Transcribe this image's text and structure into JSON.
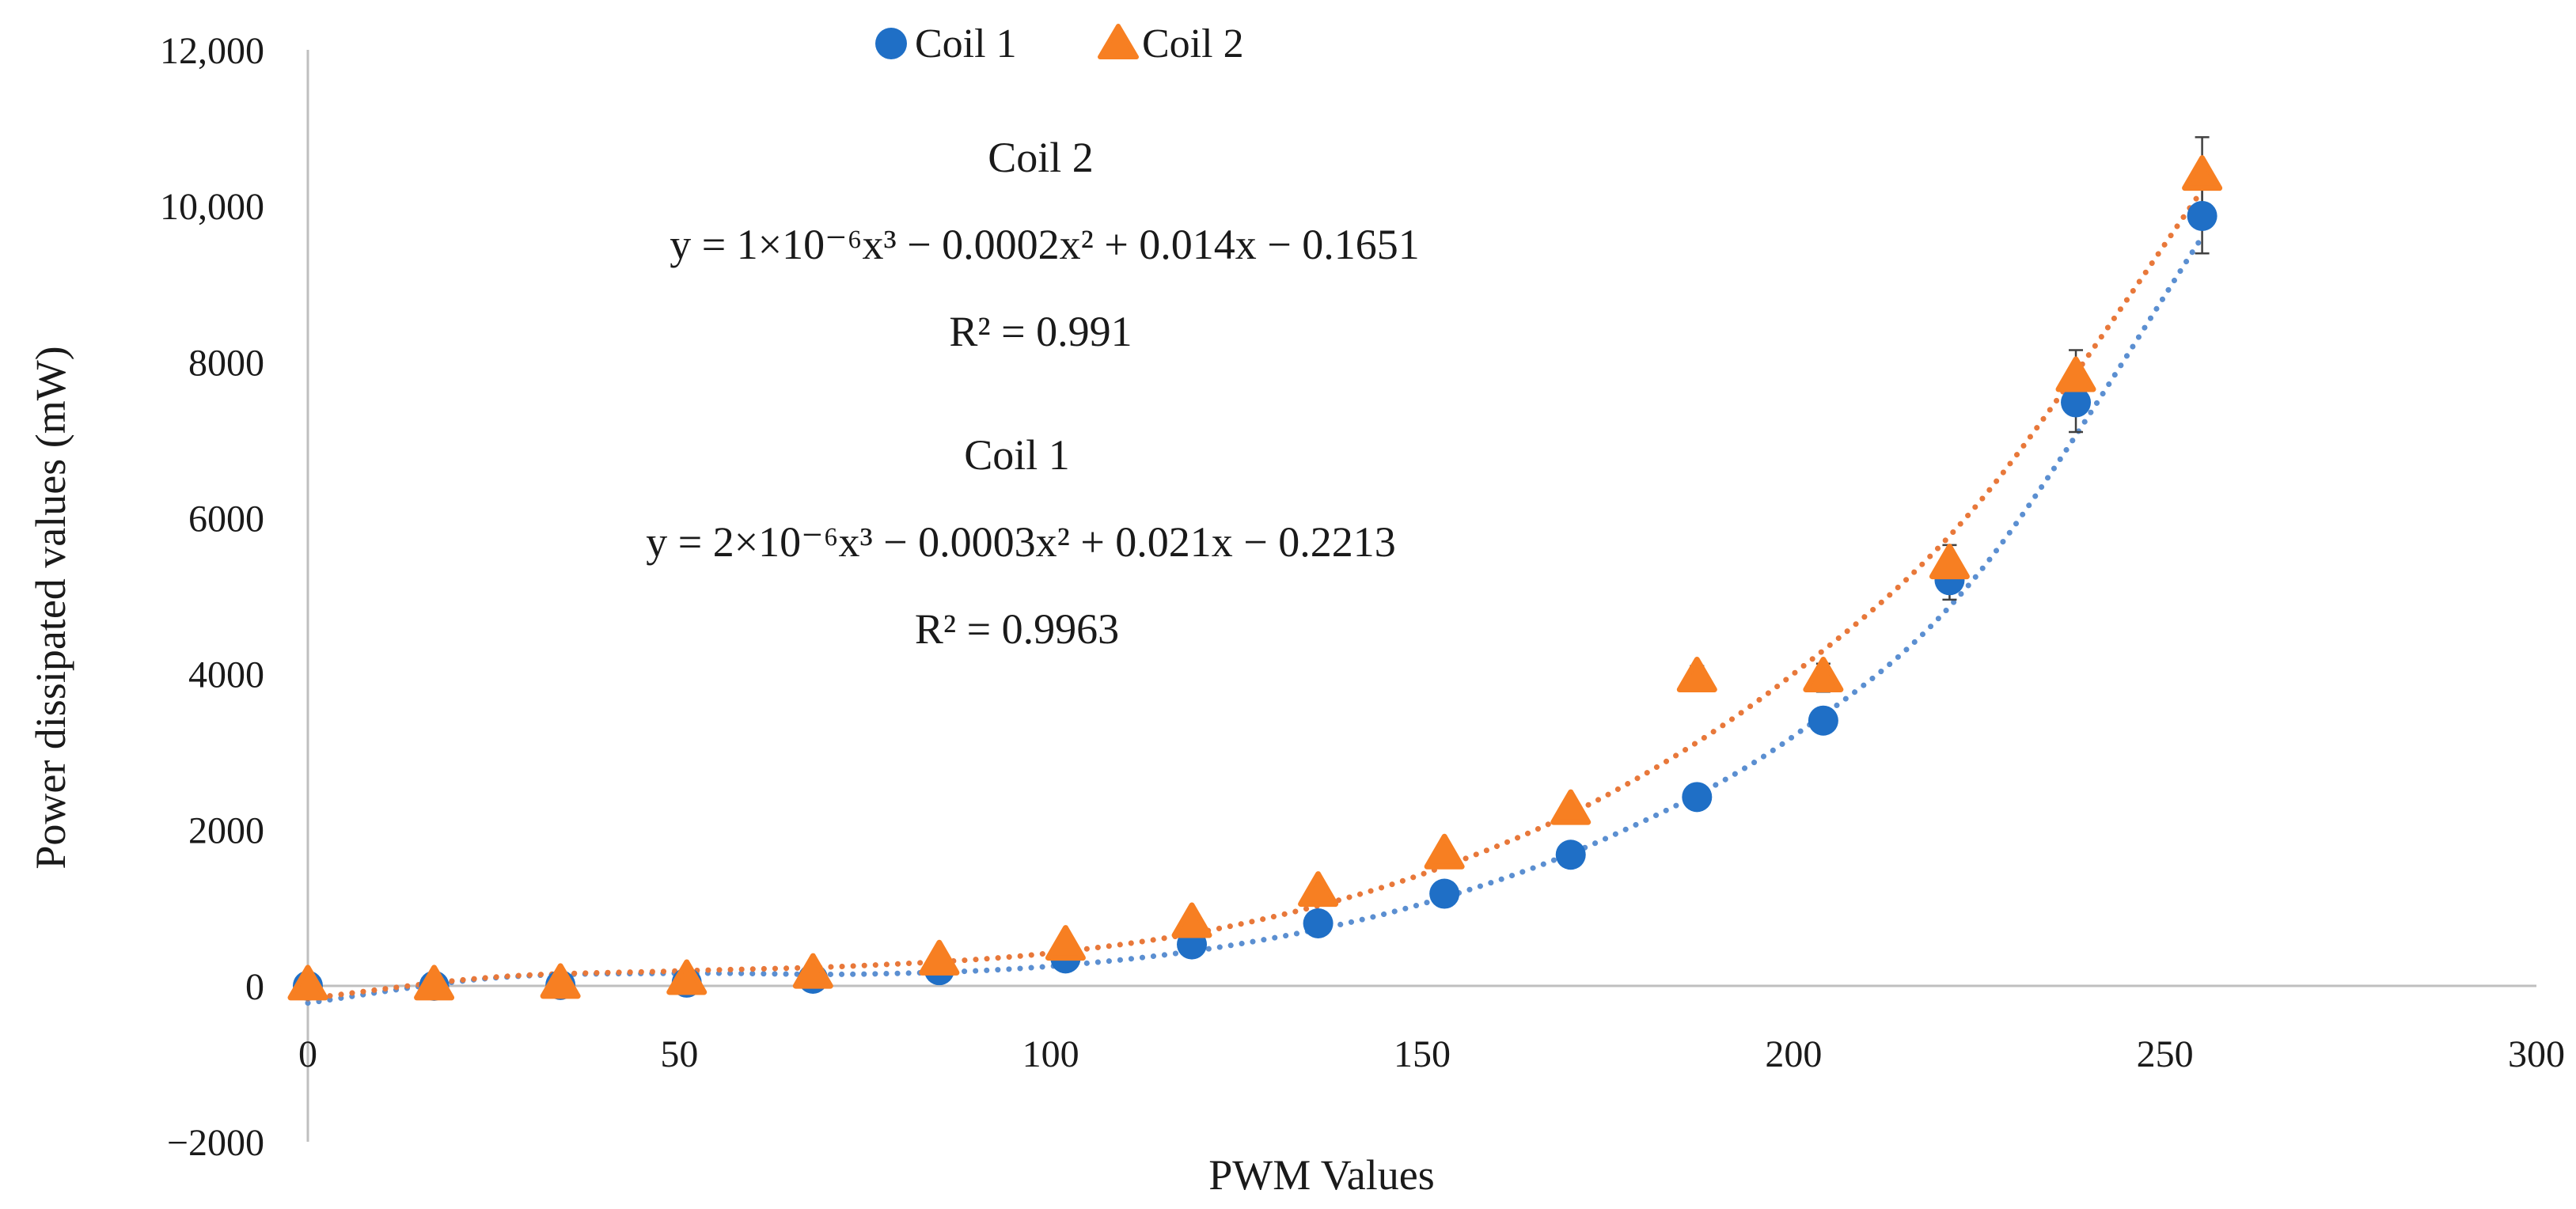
{
  "chart_data": {
    "type": "scatter",
    "title": "",
    "xlabel": "PWM Values",
    "ylabel": "Power dissipated values (mW)",
    "xlim": [
      0,
      300
    ],
    "ylim": [
      -2000,
      12000
    ],
    "x_ticks": [
      0,
      50,
      100,
      150,
      200,
      250,
      300
    ],
    "x_tick_labels": [
      "0",
      "50",
      "100",
      "150",
      "200",
      "250",
      "300"
    ],
    "y_ticks": [
      -2000,
      0,
      2000,
      4000,
      6000,
      8000,
      10000,
      12000
    ],
    "y_tick_labels": [
      "−2000",
      "0",
      "2000",
      "4000",
      "6000",
      "8000",
      "10,000",
      "12,000"
    ],
    "grid": false,
    "legend_position": "top-center",
    "x": [
      0,
      17,
      34,
      51,
      68,
      85,
      102,
      119,
      136,
      153,
      170,
      187,
      204,
      221,
      238,
      255
    ],
    "series": [
      {
        "name": "Coil 1",
        "color": "#1f6fc6",
        "marker": "circle",
        "values": [
          0,
          0,
          10,
          40,
          90,
          200,
          350,
          530,
          800,
          1180,
          1680,
          2420,
          3400,
          5200,
          7480,
          9870
        ],
        "errors": [
          0,
          0,
          0,
          0,
          0,
          0,
          0,
          0,
          0,
          0,
          0,
          0,
          0,
          250,
          380,
          480
        ],
        "trendline": {
          "type": "poly3",
          "color": "#5b8fd1",
          "points": [
            [
              0,
              -221
            ],
            [
              25,
              100
            ],
            [
              50,
              160
            ],
            [
              75,
              150
            ],
            [
              100,
              250
            ],
            [
              125,
              530
            ],
            [
              150,
              1050
            ],
            [
              175,
              1900
            ],
            [
              200,
              3200
            ],
            [
              225,
              5300
            ],
            [
              255,
              9600
            ]
          ]
        }
      },
      {
        "name": "Coil 2",
        "color": "#f77f22",
        "marker": "triangle",
        "values": [
          0,
          0,
          20,
          70,
          150,
          320,
          510,
          800,
          1200,
          1680,
          2250,
          3950,
          3950,
          5400,
          7800,
          10380
        ],
        "errors": [
          0,
          0,
          0,
          0,
          0,
          0,
          0,
          0,
          0,
          0,
          0,
          150,
          180,
          250,
          350,
          500
        ],
        "trendline": {
          "type": "poly3",
          "color": "#e8783a",
          "points": [
            [
              0,
              -165
            ],
            [
              25,
              110
            ],
            [
              50,
              190
            ],
            [
              75,
              260
            ],
            [
              100,
              420
            ],
            [
              125,
              780
            ],
            [
              150,
              1430
            ],
            [
              175,
              2450
            ],
            [
              200,
              4000
            ],
            [
              225,
              6200
            ],
            [
              255,
              10200
            ]
          ]
        }
      }
    ],
    "annotations": [
      {
        "id": "coil2",
        "lines": [
          "Coil 2",
          "y = 1×10⁻⁶x³ − 0.0002x² + 0.014x − 0.1651",
          "R² = 0.991"
        ]
      },
      {
        "id": "coil1",
        "lines": [
          "Coil 1",
          "y = 2×10⁻⁶x³ − 0.0003x² + 0.021x − 0.2213",
          "R² = 0.9963"
        ]
      }
    ]
  }
}
